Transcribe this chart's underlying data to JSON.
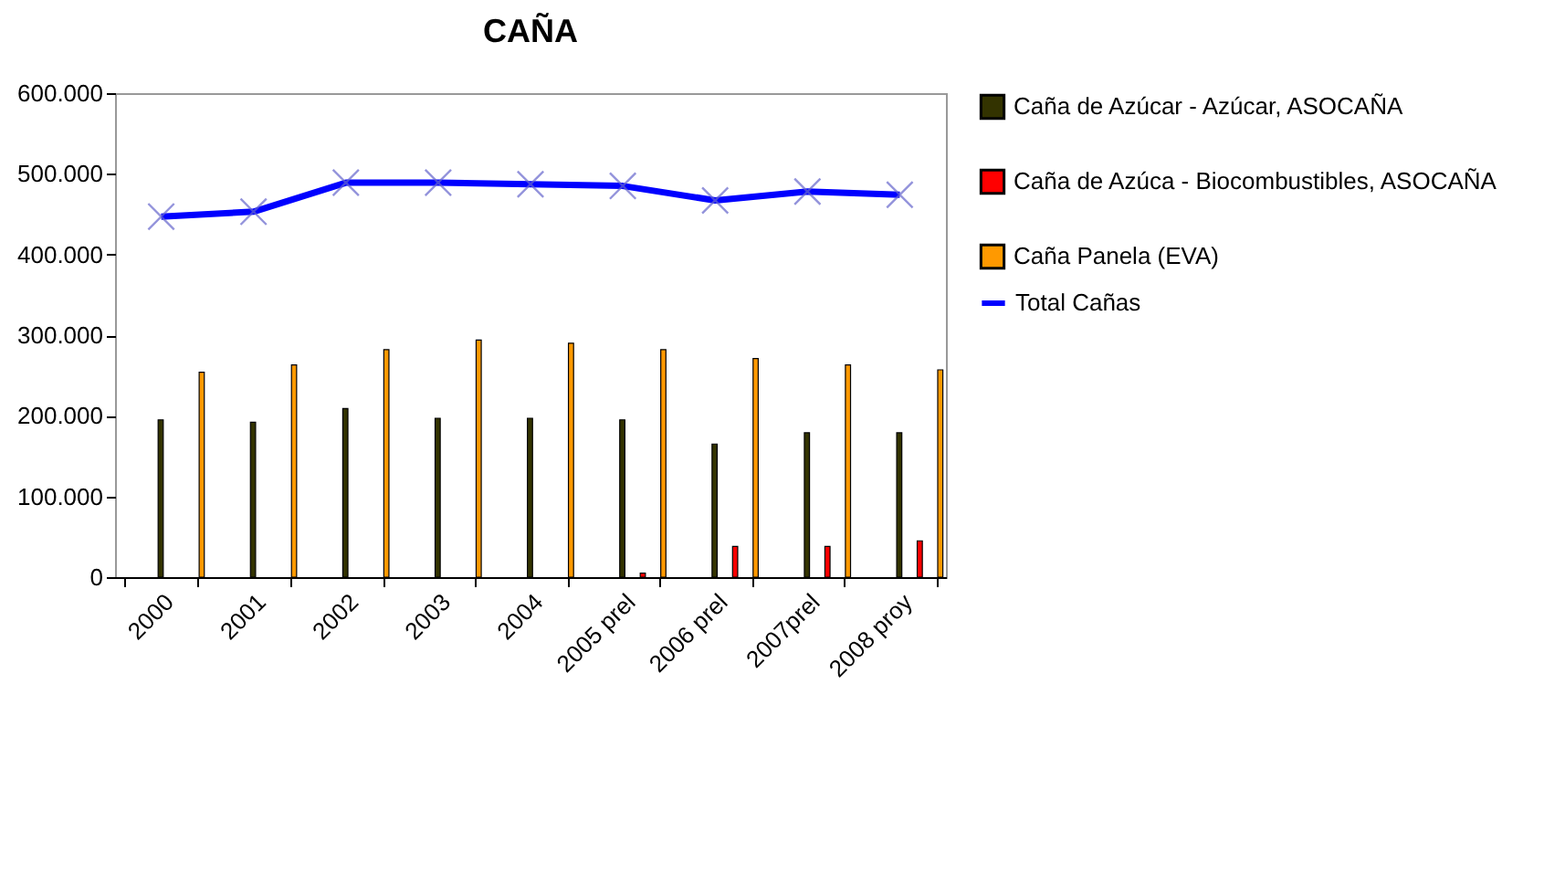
{
  "chart_data": {
    "type": "bar",
    "title": "CAÑA",
    "categories": [
      "2000",
      "2001",
      "2002",
      "2003",
      "2004",
      "2005 prel",
      "2006 prel",
      "2007prel",
      "2008 proy"
    ],
    "series": [
      {
        "name": "Caña de Azúcar - Azúcar, ASOCAÑA",
        "color": "#333300",
        "values": [
          195000,
          192000,
          209000,
          197000,
          197000,
          195000,
          165000,
          179000,
          179000
        ]
      },
      {
        "name": "Caña de Azúca - Biocombustibles, ASOCAÑA",
        "color": "#ff0000",
        "values": [
          null,
          null,
          null,
          null,
          null,
          5000,
          38000,
          38000,
          45000
        ]
      },
      {
        "name": "Caña Panela (EVA)",
        "color": "#ff9900",
        "values": [
          254000,
          263000,
          282000,
          294000,
          290000,
          282000,
          271000,
          263000,
          257000
        ]
      },
      {
        "name": "Total Cañas",
        "type": "line",
        "color": "#0000ff",
        "marker": "cross",
        "values": [
          447000,
          453000,
          489000,
          489000,
          487000,
          485000,
          467000,
          478000,
          474000
        ]
      }
    ],
    "ylim": [
      0,
      600000
    ],
    "yticks": [
      {
        "value": 0,
        "label": "0"
      },
      {
        "value": 100000,
        "label": "100.000"
      },
      {
        "value": 200000,
        "label": "200.000"
      },
      {
        "value": 300000,
        "label": "300.000"
      },
      {
        "value": 400000,
        "label": "400.000"
      },
      {
        "value": 500000,
        "label": "500.000"
      },
      {
        "value": 600000,
        "label": "600.000"
      }
    ],
    "grid": false,
    "legend": "right"
  }
}
